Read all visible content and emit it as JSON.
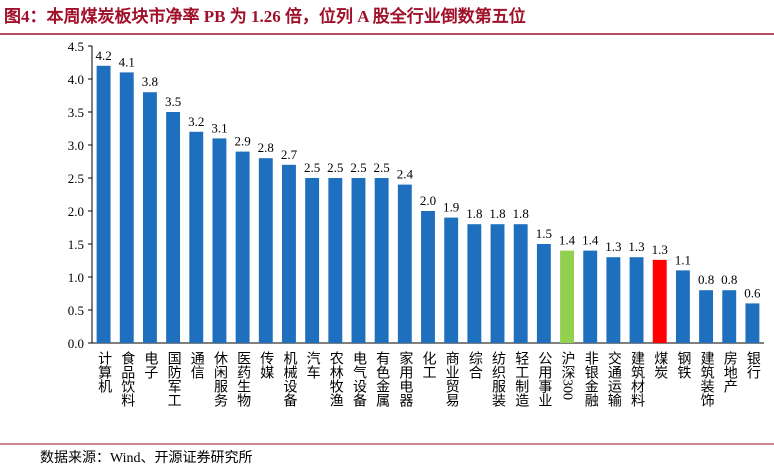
{
  "chart_data": {
    "type": "bar",
    "title": "图4：本周煤炭板块市净率 PB 为 1.26 倍，位列 A 股全行业倒数第五位",
    "source": "数据来源：Wind、开源证券研究所",
    "categories": [
      "计算机",
      "食品饮料",
      "电子",
      "国防军工",
      "通信",
      "休闲服务",
      "医药生物",
      "传媒",
      "机械设备",
      "汽车",
      "农林牧渔",
      "电气设备",
      "有色金属",
      "家用电器",
      "化工",
      "商业贸易",
      "综合",
      "纺织服装",
      "轻工制造",
      "公用事业",
      "沪深300",
      "非银金融",
      "交通运输",
      "建筑材料",
      "煤炭",
      "钢铁",
      "建筑装饰",
      "房地产",
      "银行"
    ],
    "values": [
      4.2,
      4.1,
      3.8,
      3.5,
      3.2,
      3.1,
      2.9,
      2.8,
      2.7,
      2.5,
      2.5,
      2.5,
      2.5,
      2.4,
      2.0,
      1.9,
      1.8,
      1.8,
      1.8,
      1.5,
      1.4,
      1.4,
      1.3,
      1.3,
      1.26,
      1.1,
      0.8,
      0.8,
      0.6
    ],
    "value_labels": [
      "4.2",
      "4.1",
      "3.8",
      "3.5",
      "3.2",
      "3.1",
      "2.9",
      "2.8",
      "2.7",
      "2.5",
      "2.5",
      "2.5",
      "2.5",
      "2.4",
      "2.0",
      "1.9",
      "1.8",
      "1.8",
      "1.8",
      "1.5",
      "1.4",
      "1.4",
      "1.3",
      "1.3",
      "1.3",
      "1.1",
      "0.8",
      "0.8",
      "0.6"
    ],
    "colors": [
      "#1f6fbf",
      "#1f6fbf",
      "#1f6fbf",
      "#1f6fbf",
      "#1f6fbf",
      "#1f6fbf",
      "#1f6fbf",
      "#1f6fbf",
      "#1f6fbf",
      "#1f6fbf",
      "#1f6fbf",
      "#1f6fbf",
      "#1f6fbf",
      "#1f6fbf",
      "#1f6fbf",
      "#1f6fbf",
      "#1f6fbf",
      "#1f6fbf",
      "#1f6fbf",
      "#1f6fbf",
      "#92d050",
      "#1f6fbf",
      "#1f6fbf",
      "#1f6fbf",
      "#ff0000",
      "#1f6fbf",
      "#1f6fbf",
      "#1f6fbf",
      "#1f6fbf"
    ],
    "ylim": [
      0,
      4.5
    ],
    "yticks": [
      {
        "value": 0,
        "label": "0.0"
      },
      {
        "value": 0.5,
        "label": "0.5"
      },
      {
        "value": 1,
        "label": "1.0"
      },
      {
        "value": 1.5,
        "label": "1.5"
      },
      {
        "value": 2,
        "label": "2.0"
      },
      {
        "value": 2.5,
        "label": "2.5"
      },
      {
        "value": 3,
        "label": "3.0"
      },
      {
        "value": 3.5,
        "label": "3.5"
      },
      {
        "value": 4,
        "label": "4.0"
      },
      {
        "value": 4.5,
        "label": "4.5"
      }
    ]
  }
}
